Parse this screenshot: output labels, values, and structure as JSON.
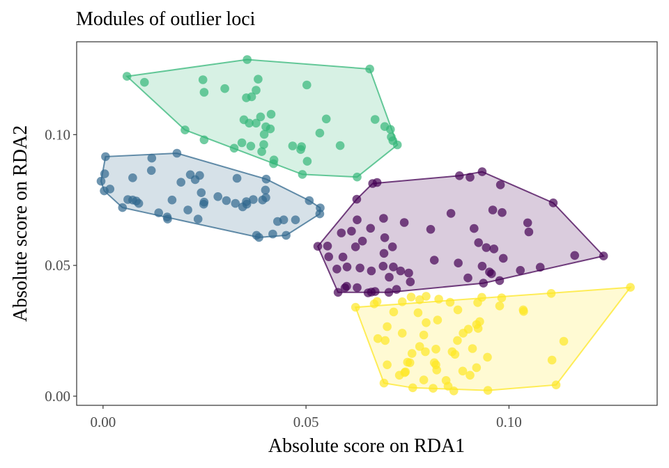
{
  "chart_data": {
    "type": "scatter",
    "title": "Modules of outlier loci",
    "xlabel": "Absolute score on RDA1",
    "ylabel": "Absolute score on RDA2",
    "xlim": [
      -0.0065,
      0.1365
    ],
    "ylim": [
      -0.0035,
      0.1355
    ],
    "x_ticks": [
      0.0,
      0.05,
      0.1
    ],
    "x_tick_labels": [
      "0.00",
      "0.05",
      "0.10"
    ],
    "y_ticks": [
      0.0,
      0.05,
      0.1
    ],
    "y_tick_labels": [
      "0.00",
      "0.05",
      "0.10"
    ],
    "grid": false,
    "legend": "none",
    "series": [
      {
        "color": "#440154",
        "hull": [
          [
            0.0529,
            0.0573
          ],
          [
            0.0625,
            0.0753
          ],
          [
            0.0664,
            0.0813
          ],
          [
            0.0878,
            0.0843
          ],
          [
            0.0934,
            0.0858
          ],
          [
            0.1109,
            0.0739
          ],
          [
            0.1233,
            0.0536
          ],
          [
            0.0937,
            0.0432
          ],
          [
            0.0704,
            0.0397
          ],
          [
            0.0579,
            0.0397
          ]
        ],
        "points": [
          [
            0.0529,
            0.0573
          ],
          [
            0.0625,
            0.0753
          ],
          [
            0.0664,
            0.0813
          ],
          [
            0.0675,
            0.0817
          ],
          [
            0.0878,
            0.0843
          ],
          [
            0.0934,
            0.0858
          ],
          [
            0.0904,
            0.0837
          ],
          [
            0.0979,
            0.0808
          ],
          [
            0.1109,
            0.0739
          ],
          [
            0.1233,
            0.0536
          ],
          [
            0.1162,
            0.0538
          ],
          [
            0.1077,
            0.0493
          ],
          [
            0.1028,
            0.0481
          ],
          [
            0.0957,
            0.0468
          ],
          [
            0.0937,
            0.0432
          ],
          [
            0.0704,
            0.0397
          ],
          [
            0.0661,
            0.0398
          ],
          [
            0.0579,
            0.0397
          ],
          [
            0.0596,
            0.0414
          ],
          [
            0.0653,
            0.0395
          ],
          [
            0.0626,
            0.0674
          ],
          [
            0.0659,
            0.0642
          ],
          [
            0.0691,
            0.068
          ],
          [
            0.0742,
            0.0664
          ],
          [
            0.0857,
            0.0699
          ],
          [
            0.0807,
            0.0638
          ],
          [
            0.0612,
            0.0631
          ],
          [
            0.0587,
            0.0624
          ],
          [
            0.0639,
            0.0593
          ],
          [
            0.0694,
            0.0606
          ],
          [
            0.0713,
            0.0571
          ],
          [
            0.0553,
            0.0574
          ],
          [
            0.0622,
            0.0571
          ],
          [
            0.0692,
            0.0546
          ],
          [
            0.0556,
            0.0533
          ],
          [
            0.0591,
            0.0532
          ],
          [
            0.0601,
            0.0494
          ],
          [
            0.0633,
            0.049
          ],
          [
            0.0576,
            0.0486
          ],
          [
            0.0661,
            0.0479
          ],
          [
            0.069,
            0.0497
          ],
          [
            0.0715,
            0.0494
          ],
          [
            0.0733,
            0.0479
          ],
          [
            0.0753,
            0.0471
          ],
          [
            0.0705,
            0.0455
          ],
          [
            0.0757,
            0.0437
          ],
          [
            0.0816,
            0.052
          ],
          [
            0.0875,
            0.0509
          ],
          [
            0.0925,
            0.0587
          ],
          [
            0.0944,
            0.0568
          ],
          [
            0.0963,
            0.0563
          ],
          [
            0.0986,
            0.0527
          ],
          [
            0.0934,
            0.0497
          ],
          [
            0.0952,
            0.0475
          ],
          [
            0.0977,
            0.0442
          ],
          [
            0.096,
            0.0712
          ],
          [
            0.0983,
            0.0702
          ],
          [
            0.0914,
            0.0641
          ],
          [
            0.1046,
            0.0663
          ],
          [
            0.1049,
            0.0628
          ],
          [
            0.0899,
            0.0452
          ],
          [
            0.0626,
            0.0415
          ],
          [
            0.06,
            0.042
          ],
          [
            0.067,
            0.04
          ],
          [
            0.0723,
            0.0408
          ]
        ]
      },
      {
        "color": "#31688e",
        "hull": [
          [
            -0.0005,
            0.0822
          ],
          [
            0.0006,
            0.0916
          ],
          [
            0.0182,
            0.0929
          ],
          [
            0.0402,
            0.083
          ],
          [
            0.0508,
            0.0748
          ],
          [
            0.0535,
            0.072
          ],
          [
            0.0534,
            0.0697
          ],
          [
            0.0451,
            0.0615
          ],
          [
            0.0384,
            0.0607
          ],
          [
            0.0048,
            0.0721
          ],
          [
            0.0003,
            0.0785
          ]
        ],
        "points": [
          [
            -0.0005,
            0.0822
          ],
          [
            0.0006,
            0.0916
          ],
          [
            0.0004,
            0.085
          ],
          [
            0.0003,
            0.0785
          ],
          [
            0.0017,
            0.0792
          ],
          [
            0.0048,
            0.0721
          ],
          [
            0.0073,
            0.075
          ],
          [
            0.0082,
            0.0746
          ],
          [
            0.0088,
            0.0737
          ],
          [
            0.0061,
            0.0752
          ],
          [
            0.0073,
            0.0835
          ],
          [
            0.0119,
            0.0863
          ],
          [
            0.012,
            0.091
          ],
          [
            0.0182,
            0.0929
          ],
          [
            0.0137,
            0.0701
          ],
          [
            0.0158,
            0.0685
          ],
          [
            0.0159,
            0.0677
          ],
          [
            0.017,
            0.075
          ],
          [
            0.0192,
            0.0818
          ],
          [
            0.0215,
            0.0847
          ],
          [
            0.0238,
            0.0844
          ],
          [
            0.0227,
            0.0828
          ],
          [
            0.0242,
            0.0778
          ],
          [
            0.0249,
            0.0742
          ],
          [
            0.0248,
            0.0734
          ],
          [
            0.0234,
            0.0677
          ],
          [
            0.0209,
            0.0712
          ],
          [
            0.0283,
            0.0763
          ],
          [
            0.0304,
            0.0748
          ],
          [
            0.0326,
            0.0737
          ],
          [
            0.033,
            0.0833
          ],
          [
            0.0344,
            0.0724
          ],
          [
            0.0353,
            0.0744
          ],
          [
            0.0354,
            0.0734
          ],
          [
            0.037,
            0.0752
          ],
          [
            0.0393,
            0.075
          ],
          [
            0.0401,
            0.0759
          ],
          [
            0.04,
            0.0788
          ],
          [
            0.0402,
            0.083
          ],
          [
            0.0378,
            0.0615
          ],
          [
            0.0384,
            0.0607
          ],
          [
            0.0418,
            0.062
          ],
          [
            0.0451,
            0.0615
          ],
          [
            0.043,
            0.0668
          ],
          [
            0.0445,
            0.0674
          ],
          [
            0.0474,
            0.0674
          ],
          [
            0.0508,
            0.0748
          ],
          [
            0.0535,
            0.072
          ],
          [
            0.0534,
            0.0697
          ]
        ]
      },
      {
        "color": "#35b779",
        "hull": [
          [
            0.0059,
            0.1223
          ],
          [
            0.0355,
            0.1287
          ],
          [
            0.0657,
            0.1251
          ],
          [
            0.0725,
            0.0961
          ],
          [
            0.0626,
            0.0838
          ],
          [
            0.0491,
            0.0848
          ],
          [
            0.0202,
            0.1018
          ]
        ],
        "points": [
          [
            0.0059,
            0.1223
          ],
          [
            0.0102,
            0.12
          ],
          [
            0.0355,
            0.1287
          ],
          [
            0.0657,
            0.1251
          ],
          [
            0.0246,
            0.121
          ],
          [
            0.0249,
            0.1162
          ],
          [
            0.03,
            0.1176
          ],
          [
            0.0382,
            0.1212
          ],
          [
            0.0377,
            0.117
          ],
          [
            0.0353,
            0.1141
          ],
          [
            0.0366,
            0.1145
          ],
          [
            0.0502,
            0.119
          ],
          [
            0.0388,
            0.1068
          ],
          [
            0.0347,
            0.1057
          ],
          [
            0.036,
            0.1044
          ],
          [
            0.0377,
            0.1044
          ],
          [
            0.0401,
            0.103
          ],
          [
            0.0412,
            0.1022
          ],
          [
            0.0397,
            0.1001
          ],
          [
            0.0414,
            0.1078
          ],
          [
            0.0534,
            0.1006
          ],
          [
            0.055,
            0.106
          ],
          [
            0.067,
            0.1058
          ],
          [
            0.0694,
            0.1031
          ],
          [
            0.0708,
            0.102
          ],
          [
            0.071,
            0.0991
          ],
          [
            0.0714,
            0.0977
          ],
          [
            0.0725,
            0.0961
          ],
          [
            0.0202,
            0.1018
          ],
          [
            0.0249,
            0.098
          ],
          [
            0.0323,
            0.0948
          ],
          [
            0.0342,
            0.0969
          ],
          [
            0.0364,
            0.0956
          ],
          [
            0.0391,
            0.0935
          ],
          [
            0.0396,
            0.0962
          ],
          [
            0.0467,
            0.0957
          ],
          [
            0.0489,
            0.0954
          ],
          [
            0.0487,
            0.0943
          ],
          [
            0.0584,
            0.0958
          ],
          [
            0.0421,
            0.0903
          ],
          [
            0.042,
            0.0889
          ],
          [
            0.0503,
            0.0898
          ],
          [
            0.0491,
            0.0848
          ],
          [
            0.0626,
            0.0838
          ]
        ]
      },
      {
        "color": "#fde725",
        "hull": [
          [
            0.0622,
            0.034
          ],
          [
            0.0692,
            0.005
          ],
          [
            0.0763,
            0.0032
          ],
          [
            0.0948,
            0.0022
          ],
          [
            0.1116,
            0.0043
          ],
          [
            0.1299,
            0.0416
          ]
        ],
        "points": [
          [
            0.0622,
            0.034
          ],
          [
            0.0692,
            0.005
          ],
          [
            0.0763,
            0.0032
          ],
          [
            0.0948,
            0.0022
          ],
          [
            0.1116,
            0.0043
          ],
          [
            0.1299,
            0.0416
          ],
          [
            0.1104,
            0.0393
          ],
          [
            0.1036,
            0.0324
          ],
          [
            0.1035,
            0.033
          ],
          [
            0.1135,
            0.021
          ],
          [
            0.1106,
            0.0138
          ],
          [
            0.0668,
            0.0353
          ],
          [
            0.0675,
            0.0362
          ],
          [
            0.0716,
            0.0322
          ],
          [
            0.07,
            0.0266
          ],
          [
            0.0737,
            0.0361
          ],
          [
            0.0759,
            0.0379
          ],
          [
            0.078,
            0.0369
          ],
          [
            0.0796,
            0.0382
          ],
          [
            0.0827,
            0.0371
          ],
          [
            0.0855,
            0.0359
          ],
          [
            0.0874,
            0.033
          ],
          [
            0.0923,
            0.0358
          ],
          [
            0.0933,
            0.0378
          ],
          [
            0.0982,
            0.0376
          ],
          [
            0.0977,
            0.0345
          ],
          [
            0.0776,
            0.0319
          ],
          [
            0.0796,
            0.0281
          ],
          [
            0.079,
            0.0234
          ],
          [
            0.0824,
            0.0291
          ],
          [
            0.0873,
            0.0213
          ],
          [
            0.0887,
            0.0241
          ],
          [
            0.09,
            0.0256
          ],
          [
            0.0924,
            0.0259
          ],
          [
            0.092,
            0.0274
          ],
          [
            0.0928,
            0.0285
          ],
          [
            0.0737,
            0.0241
          ],
          [
            0.0695,
            0.0213
          ],
          [
            0.0677,
            0.022
          ],
          [
            0.078,
            0.019
          ],
          [
            0.0794,
            0.017
          ],
          [
            0.082,
            0.018
          ],
          [
            0.0761,
            0.0163
          ],
          [
            0.075,
            0.013
          ],
          [
            0.0756,
            0.0128
          ],
          [
            0.0816,
            0.0128
          ],
          [
            0.0822,
            0.01
          ],
          [
            0.082,
            0.012
          ],
          [
            0.086,
            0.017
          ],
          [
            0.0867,
            0.016
          ],
          [
            0.091,
            0.0182
          ],
          [
            0.092,
            0.0109
          ],
          [
            0.0947,
            0.0149
          ],
          [
            0.0886,
            0.0096
          ],
          [
            0.0904,
            0.008
          ],
          [
            0.0845,
            0.006
          ],
          [
            0.07,
            0.012
          ],
          [
            0.073,
            0.008
          ],
          [
            0.0745,
            0.0093
          ],
          [
            0.0743,
            0.009
          ],
          [
            0.079,
            0.0062
          ],
          [
            0.0813,
            0.003
          ],
          [
            0.085,
            0.0038
          ],
          [
            0.0864,
            0.002
          ]
        ]
      }
    ]
  }
}
